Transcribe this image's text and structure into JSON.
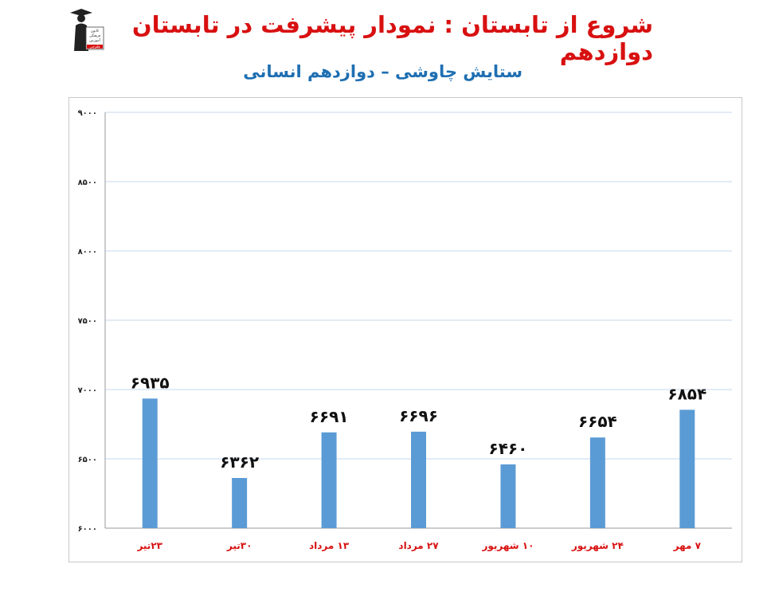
{
  "header": {
    "title": "شروع از تابستان : نمودار پیشرفت در تابستان دوازدهم",
    "subtitle": "ستایش چاوشی – دوازدهم انسانی"
  },
  "logo": {
    "icon": "graduate-figure-icon",
    "text": [
      "کانون",
      "فرهنگی",
      "آموزش",
      "قلم‌چی"
    ]
  },
  "colors": {
    "title": "#d81010",
    "subtitle": "#1f6fb2",
    "bar": "#5b9bd5",
    "xlabel": "#d81010",
    "grid": "#c5d9ee"
  },
  "chart_data": {
    "type": "bar",
    "categories": [
      "۲۳تیر",
      "۳۰تیر",
      "۱۳ مرداد",
      "۲۷ مرداد",
      "۱۰ شهریور",
      "۲۴ شهریور",
      "۷ مهر"
    ],
    "values": [
      6935,
      6362,
      6691,
      6696,
      6460,
      6654,
      6854
    ],
    "value_labels": [
      "۶۹۳۵",
      "۶۳۶۲",
      "۶۶۹۱",
      "۶۶۹۶",
      "۶۴۶۰",
      "۶۶۵۴",
      "۶۸۵۴"
    ],
    "y_ticks": [
      6000,
      6500,
      7000,
      7500,
      8000,
      8500,
      9000
    ],
    "y_tick_labels": [
      "۶۰۰۰",
      "۶۵۰۰",
      "۷۰۰۰",
      "۷۵۰۰",
      "۸۰۰۰",
      "۸۵۰۰",
      "۹۰۰۰"
    ],
    "ylim": [
      6000,
      9000
    ],
    "grid": true,
    "legend": "none"
  }
}
